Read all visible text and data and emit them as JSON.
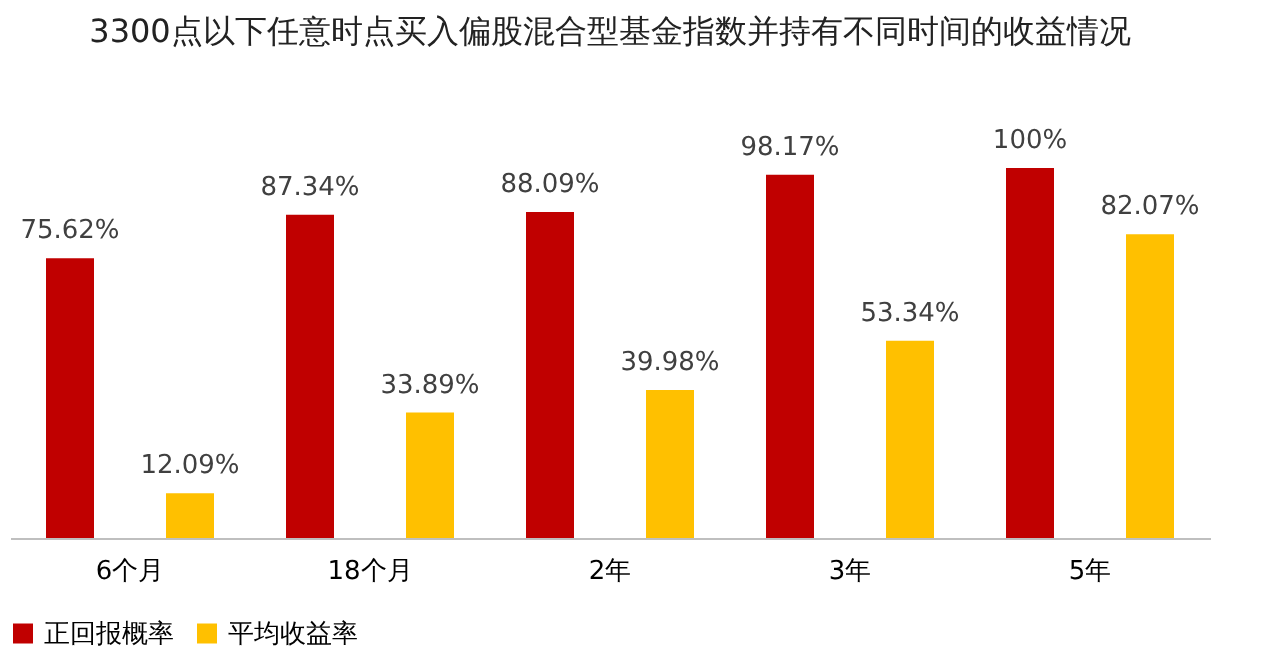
{
  "chart_data": {
    "type": "bar",
    "title": "3300点以下任意时点买入偏股混合型基金指数并持有不同时间的收益情况",
    "categories": [
      "6个月",
      "18个月",
      "2年",
      "3年",
      "5年"
    ],
    "series": [
      {
        "name": "正回报概率",
        "color": "#c00000",
        "values": [
          75.62,
          87.34,
          88.09,
          98.17,
          100
        ],
        "value_labels": [
          "75.62%",
          "87.34%",
          "88.09%",
          "98.17%",
          "100%"
        ]
      },
      {
        "name": "平均收益率",
        "color": "#ffc000",
        "values": [
          12.09,
          33.89,
          39.98,
          53.34,
          82.07
        ],
        "value_labels": [
          "12.09%",
          "33.89%",
          "39.98%",
          "53.34%",
          "82.07%"
        ]
      }
    ],
    "legend": "bottom",
    "grid": false
  }
}
